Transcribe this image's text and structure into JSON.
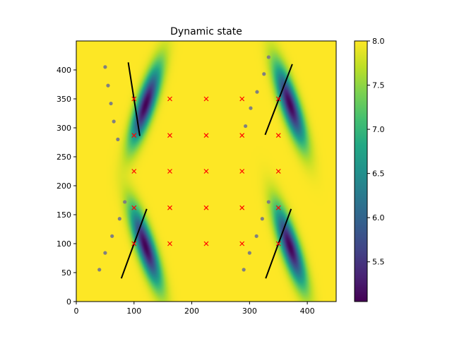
{
  "chart_data": {
    "type": "heatmap",
    "title": "Dynamic state",
    "xlabel": "",
    "ylabel": "",
    "xlim": [
      0,
      450
    ],
    "ylim": [
      0,
      450
    ],
    "x_ticks": [
      0,
      100,
      200,
      300,
      400
    ],
    "y_ticks": [
      0,
      50,
      100,
      150,
      200,
      250,
      300,
      350,
      400
    ],
    "grid": false,
    "background_value": 8.0,
    "colorbar": {
      "colormap": "viridis",
      "min": 5.05,
      "max": 8.0,
      "ticks": [
        5.5,
        6.0,
        6.5,
        7.0,
        7.5,
        8.0
      ]
    },
    "field_depressions": [
      {
        "center": [
          120,
          340
        ],
        "angle_deg": 72,
        "sigma_long": 48,
        "sigma_short": 10,
        "depth": 2.95
      },
      {
        "center": [
          370,
          340
        ],
        "angle_deg": 108,
        "sigma_long": 48,
        "sigma_short": 10,
        "depth": 2.95
      },
      {
        "center": [
          120,
          95
        ],
        "angle_deg": 108,
        "sigma_long": 48,
        "sigma_short": 10,
        "depth": 2.95
      },
      {
        "center": [
          370,
          95
        ],
        "angle_deg": 108,
        "sigma_long": 48,
        "sigma_short": 10,
        "depth": 2.95
      }
    ],
    "line_segments": [
      {
        "from": [
          90,
          413
        ],
        "to": [
          110,
          286
        ]
      },
      {
        "from": [
          327,
          288
        ],
        "to": [
          374,
          410
        ]
      },
      {
        "from": [
          78,
          40
        ],
        "to": [
          122,
          160
        ]
      },
      {
        "from": [
          328,
          40
        ],
        "to": [
          372,
          160
        ]
      }
    ],
    "line_color": "#000000",
    "red_markers": {
      "marker": "x",
      "color": "#ff0000",
      "x_levels": [
        100,
        162,
        225,
        287,
        350
      ],
      "y_levels": [
        100,
        162,
        225,
        287,
        350
      ]
    },
    "gray_points": {
      "color": "#808080",
      "points": [
        [
          50,
          405
        ],
        [
          55,
          373
        ],
        [
          60,
          342
        ],
        [
          65,
          311
        ],
        [
          72,
          280
        ],
        [
          333,
          422
        ],
        [
          325,
          393
        ],
        [
          313,
          362
        ],
        [
          302,
          334
        ],
        [
          293,
          303
        ],
        [
          40,
          55
        ],
        [
          50,
          84
        ],
        [
          62,
          113
        ],
        [
          75,
          143
        ],
        [
          84,
          172
        ],
        [
          290,
          55
        ],
        [
          300,
          84
        ],
        [
          312,
          113
        ],
        [
          322,
          143
        ],
        [
          333,
          172
        ]
      ]
    }
  }
}
